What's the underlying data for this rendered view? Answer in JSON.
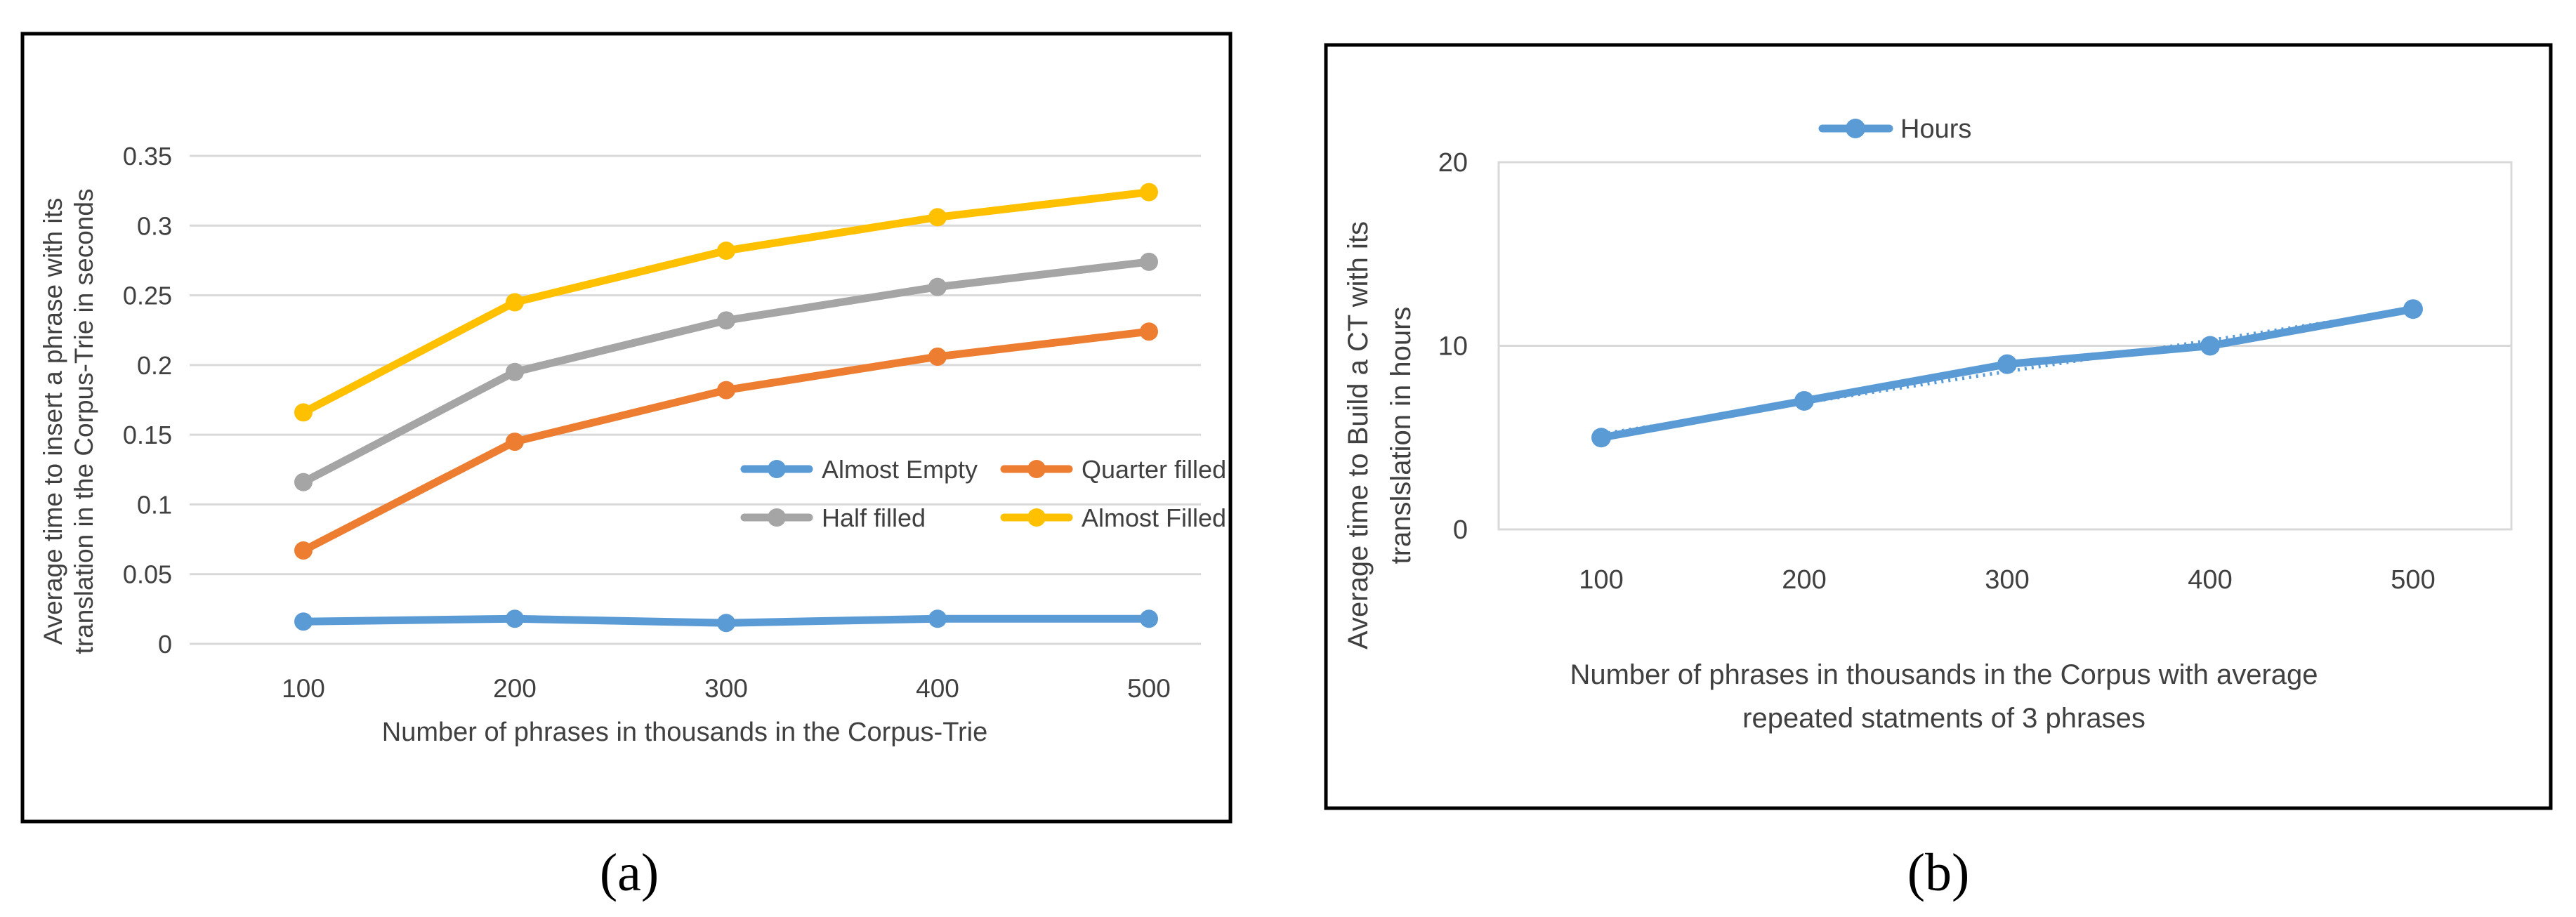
{
  "chart_data": [
    {
      "type": "line",
      "panel_label": "(a)",
      "title": "",
      "xlabel": "Number of phrases in thousands in the Corpus-Trie",
      "ylabel_lines": [
        "Average  time to insert a phrase with its",
        "translation in the Corpus-Trie in seconds"
      ],
      "categories": [
        "100",
        "200",
        "300",
        "400",
        "500"
      ],
      "ylim": [
        0,
        0.35
      ],
      "yticks": [
        "0",
        "0.05",
        "0.1",
        "0.15",
        "0.2",
        "0.25",
        "0.3",
        "0.35"
      ],
      "ytick_values": [
        0,
        0.05,
        0.1,
        0.15,
        0.2,
        0.25,
        0.3,
        0.35
      ],
      "grid": true,
      "legend_position": "middle-right",
      "series": [
        {
          "name": "Almost Empty",
          "color": "#5B9BD5",
          "values": [
            0.016,
            0.018,
            0.015,
            0.018,
            0.018
          ]
        },
        {
          "name": "Quarter  filled",
          "color": "#ED7D31",
          "values": [
            0.067,
            0.145,
            0.182,
            0.206,
            0.224
          ]
        },
        {
          "name": "Half filled",
          "color": "#A5A5A5",
          "values": [
            0.116,
            0.195,
            0.232,
            0.256,
            0.274
          ]
        },
        {
          "name": "Almost Filled",
          "color": "#FFC000",
          "values": [
            0.166,
            0.245,
            0.282,
            0.306,
            0.324
          ]
        }
      ]
    },
    {
      "type": "line",
      "panel_label": "(b)",
      "title": "",
      "xlabel_lines": [
        "Number of phrases in thousands in the Corpus with average",
        "repeated statments of 3 phrases"
      ],
      "ylabel_lines": [
        "Average  time to Build a CT with its",
        "translslation in hours"
      ],
      "categories": [
        "100",
        "200",
        "300",
        "400",
        "500"
      ],
      "ylim": [
        0,
        20
      ],
      "yticks": [
        "0",
        "10",
        "20"
      ],
      "ytick_values": [
        0,
        10,
        20
      ],
      "grid": true,
      "legend_position": "top-left",
      "trendline": "linear (dotted)",
      "series": [
        {
          "name": "Hours",
          "color": "#5B9BD5",
          "values": [
            5,
            7,
            9,
            10,
            12
          ]
        }
      ]
    }
  ]
}
